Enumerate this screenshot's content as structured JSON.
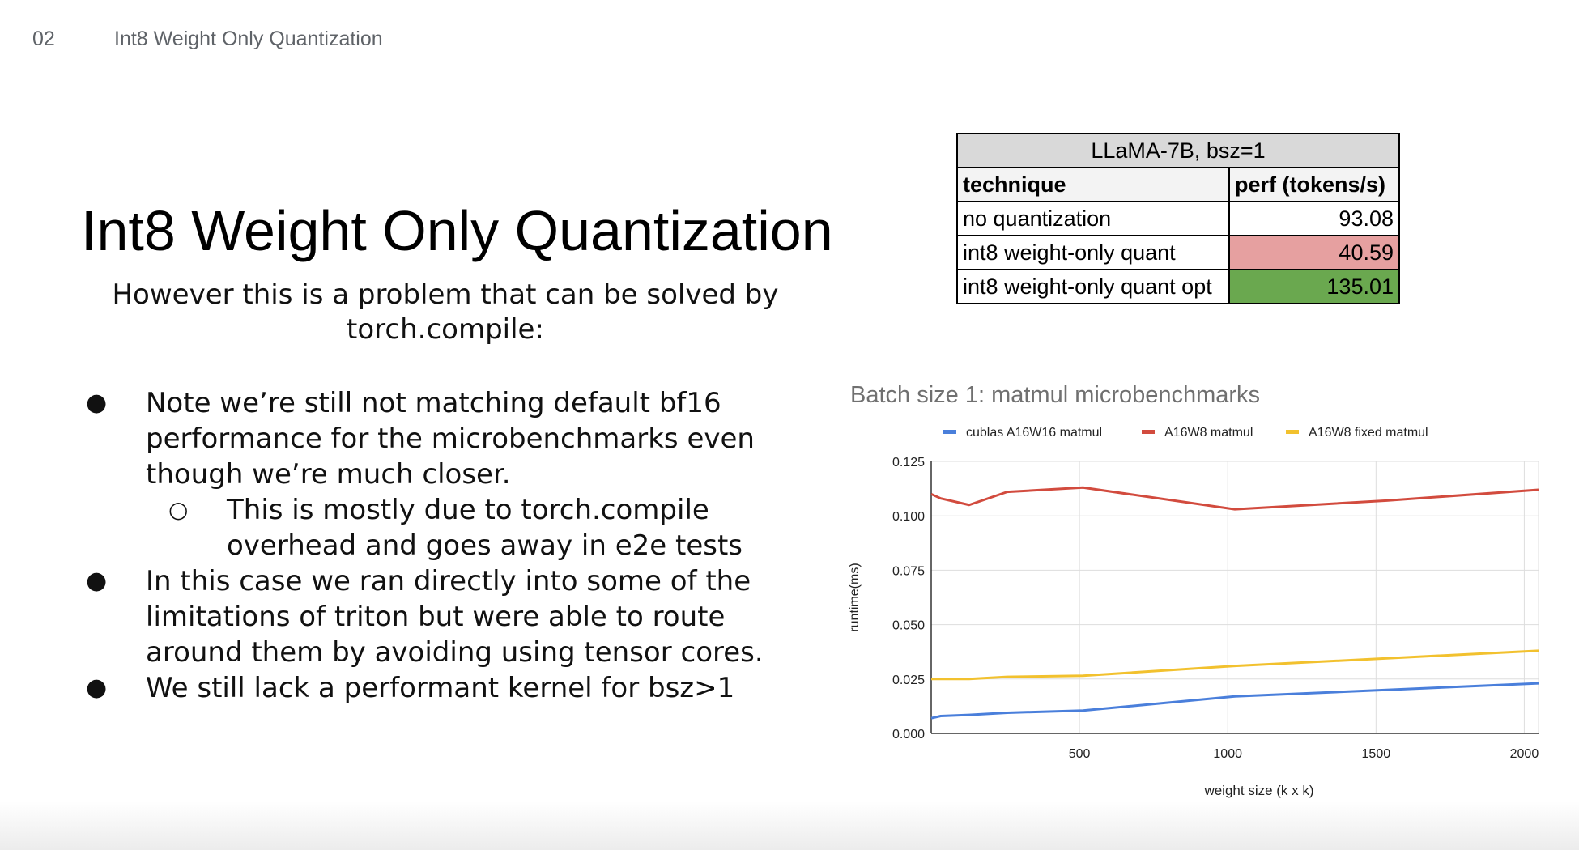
{
  "header": {
    "slide_number": "02",
    "section": "Int8 Weight Only Quantization"
  },
  "title": "Int8 Weight Only Quantization",
  "subtitle": "However this is a problem that can be solved by torch.compile:",
  "bullets": [
    {
      "level": 1,
      "text": "Note we’re still not matching default bf16 performance for the microbenchmarks even though we’re much closer."
    },
    {
      "level": 2,
      "text": "This is mostly due to torch.compile overhead and goes away in e2e tests"
    },
    {
      "level": 1,
      "text": "In this case we ran directly into some of the limitations of triton but were able to route around them by avoiding using tensor cores."
    },
    {
      "level": 1,
      "text": "We still lack a performant kernel for bsz>1"
    }
  ],
  "table": {
    "caption": "LLaMA-7B, bsz=1",
    "headers": [
      "technique",
      "perf (tokens/s)"
    ],
    "rows": [
      {
        "technique": "no quantization",
        "perf": "93.08",
        "highlight": "#ffffff"
      },
      {
        "technique": "int8 weight-only quant",
        "perf": "40.59",
        "highlight": "#e6a0a0"
      },
      {
        "technique": "int8 weight-only quant opt",
        "perf": "135.01",
        "highlight": "#6aa84f"
      }
    ]
  },
  "chart_data": {
    "type": "line",
    "title": "Batch size 1: matmul microbenchmarks",
    "xlabel": "weight size (k x k)",
    "ylabel": "runtime(ms)",
    "xlim": [
      0,
      2048
    ],
    "ylim": [
      0,
      0.125
    ],
    "xticks": [
      500,
      1000,
      1500,
      2000
    ],
    "yticks": [
      0.0,
      0.025,
      0.05,
      0.075,
      0.1,
      0.125
    ],
    "ytick_labels": [
      "0.000",
      "0.025",
      "0.050",
      "0.075",
      "0.100",
      "0.125"
    ],
    "grid": true,
    "legend": "top",
    "series": [
      {
        "name": "cublas A16W16 matmul",
        "color": "#4a7fdb",
        "x": [
          0,
          32,
          128,
          256,
          512,
          1024,
          1536,
          2048
        ],
        "y": [
          0.007,
          0.008,
          0.0085,
          0.0095,
          0.0105,
          0.017,
          0.02,
          0.023
        ]
      },
      {
        "name": "A16W8 matmul",
        "color": "#d24b3e",
        "x": [
          0,
          32,
          128,
          256,
          512,
          1024,
          1536,
          2048
        ],
        "y": [
          0.11,
          0.108,
          0.105,
          0.111,
          0.113,
          0.103,
          0.107,
          0.112
        ]
      },
      {
        "name": "A16W8 fixed matmul",
        "color": "#f2c12e",
        "x": [
          0,
          32,
          128,
          256,
          512,
          1024,
          1536,
          2048
        ],
        "y": [
          0.025,
          0.025,
          0.025,
          0.026,
          0.0265,
          0.031,
          0.0345,
          0.038
        ]
      }
    ]
  }
}
